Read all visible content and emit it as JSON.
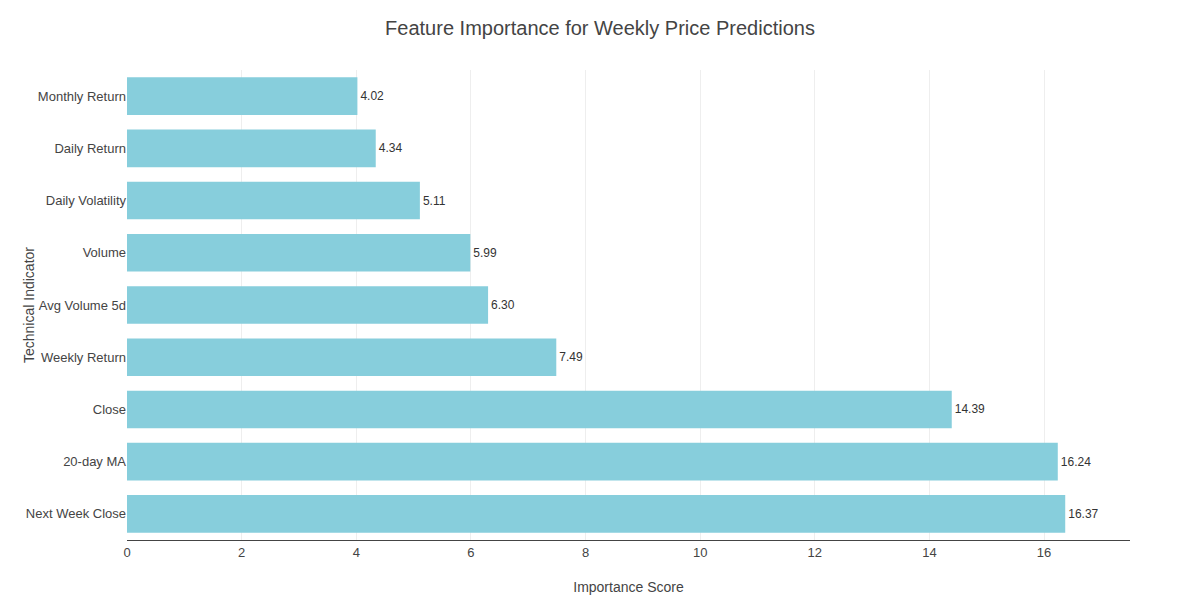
{
  "chart_data": {
    "type": "bar",
    "orientation": "horizontal",
    "title": "Feature Importance for Weekly Price Predictions",
    "xlabel": "Importance Score",
    "ylabel": "Technical Indicator",
    "categories": [
      "Next Week Close",
      "20-day MA",
      "Close",
      "Weekly Return",
      "Avg Volume 5d",
      "Volume",
      "Daily Volatility",
      "Daily Return",
      "Monthly Return"
    ],
    "values": [
      16.37,
      16.24,
      14.39,
      7.49,
      6.3,
      5.99,
      5.11,
      4.34,
      4.02
    ],
    "value_labels": [
      "16.37",
      "16.24",
      "14.39",
      "7.49",
      "6.30",
      "5.99",
      "5.11",
      "4.34",
      "4.02"
    ],
    "data_labels": true,
    "color": "#87CEDC",
    "xlim": [
      0,
      17.5
    ],
    "xticks": [
      0,
      2,
      4,
      6,
      8,
      10,
      12,
      14,
      16
    ],
    "grid": true
  }
}
